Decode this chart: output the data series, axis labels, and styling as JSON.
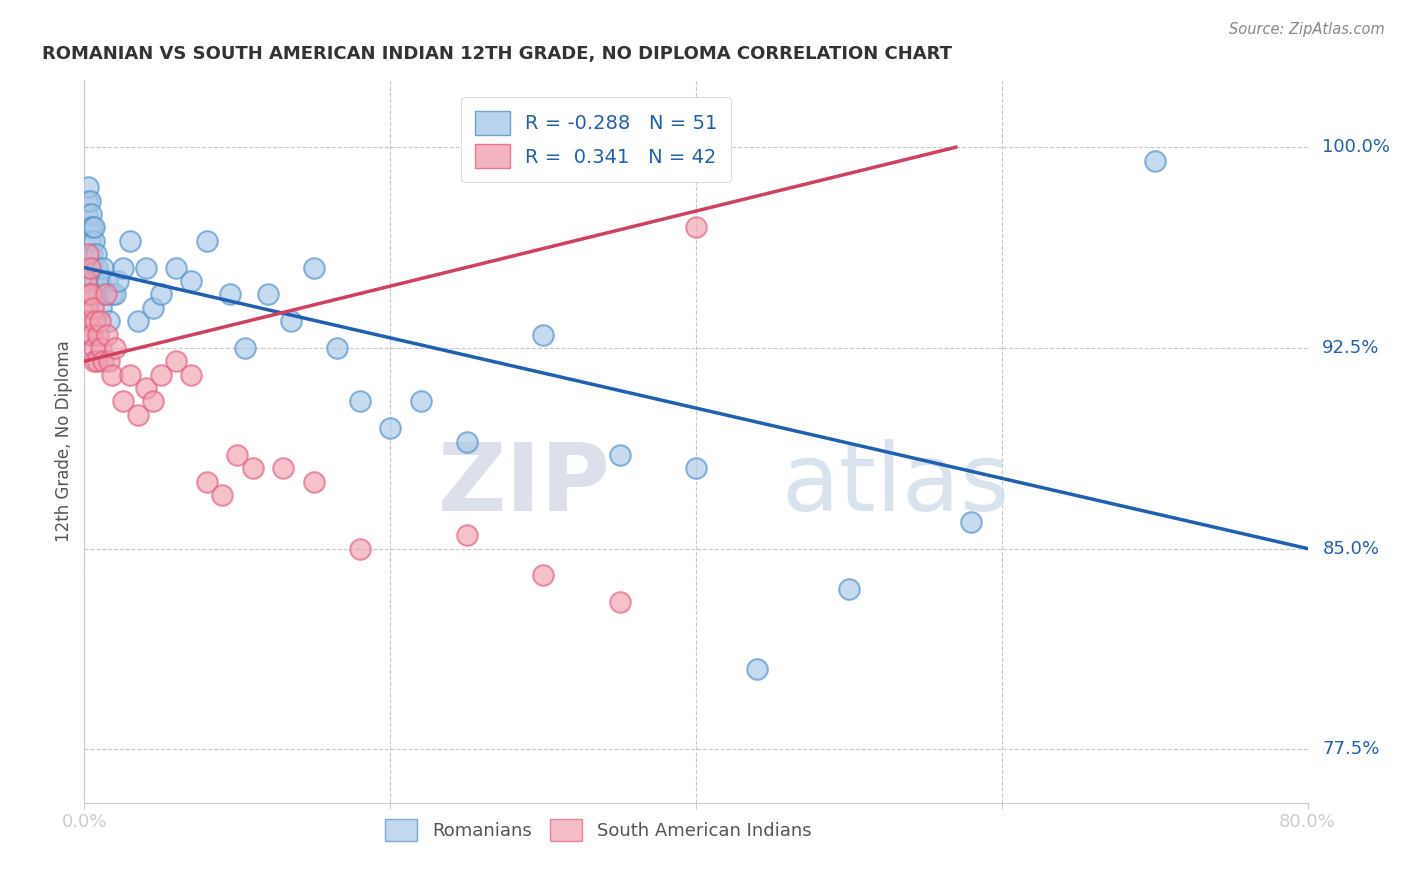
{
  "title": "ROMANIAN VS SOUTH AMERICAN INDIAN 12TH GRADE, NO DIPLOMA CORRELATION CHART",
  "source": "Source: ZipAtlas.com",
  "ylabel": "12th Grade, No Diploma",
  "xlim": [
    0.0,
    80.0
  ],
  "ylim": [
    75.5,
    102.5
  ],
  "xticks": [
    0.0,
    20.0,
    40.0,
    60.0,
    80.0
  ],
  "xticklabels": [
    "0.0%",
    "",
    "",
    "",
    "80.0%"
  ],
  "ytick_positions": [
    77.5,
    85.0,
    92.5,
    100.0
  ],
  "ytick_labels": [
    "77.5%",
    "85.0%",
    "92.5%",
    "100.0%"
  ],
  "watermark_zip": "ZIP",
  "watermark_atlas": "atlas",
  "r_blue": -0.288,
  "n_blue": 51,
  "r_pink": 0.341,
  "n_pink": 42,
  "blue_fill": "#a8c8e8",
  "pink_fill": "#f0a0b0",
  "blue_edge": "#5090c8",
  "pink_edge": "#e06080",
  "blue_line_color": "#2060b0",
  "pink_line_color": "#d04060",
  "blue_scatter_x": [
    0.15,
    0.2,
    0.25,
    0.3,
    0.35,
    0.4,
    0.45,
    0.5,
    0.5,
    0.55,
    0.6,
    0.65,
    0.7,
    0.75,
    0.8,
    0.9,
    1.0,
    1.1,
    1.2,
    1.3,
    1.5,
    1.6,
    1.8,
    2.0,
    2.2,
    2.5,
    3.0,
    3.5,
    4.0,
    4.5,
    5.0,
    6.0,
    7.0,
    8.0,
    9.5,
    10.5,
    12.0,
    13.5,
    15.0,
    16.5,
    18.0,
    20.0,
    22.0,
    25.0,
    30.0,
    35.0,
    40.0,
    44.0,
    50.0,
    58.0,
    70.0
  ],
  "blue_scatter_y": [
    97.5,
    98.0,
    98.5,
    97.0,
    98.0,
    96.5,
    97.5,
    97.0,
    96.0,
    95.5,
    96.5,
    97.0,
    95.0,
    96.0,
    95.5,
    94.5,
    95.0,
    94.0,
    95.5,
    94.5,
    95.0,
    93.5,
    94.5,
    94.5,
    95.0,
    95.5,
    96.5,
    93.5,
    95.5,
    94.0,
    94.5,
    95.5,
    95.0,
    96.5,
    94.5,
    92.5,
    94.5,
    93.5,
    95.5,
    92.5,
    90.5,
    89.5,
    90.5,
    89.0,
    93.0,
    88.5,
    88.0,
    80.5,
    83.5,
    86.0,
    99.5
  ],
  "pink_scatter_x": [
    0.1,
    0.15,
    0.2,
    0.25,
    0.3,
    0.35,
    0.4,
    0.45,
    0.5,
    0.55,
    0.6,
    0.65,
    0.7,
    0.8,
    0.9,
    1.0,
    1.1,
    1.2,
    1.4,
    1.5,
    1.6,
    1.8,
    2.0,
    2.5,
    3.0,
    3.5,
    4.0,
    4.5,
    5.0,
    6.0,
    7.0,
    8.0,
    9.0,
    10.0,
    11.0,
    13.0,
    15.0,
    18.0,
    25.0,
    30.0,
    35.0,
    40.0
  ],
  "pink_scatter_y": [
    95.0,
    94.0,
    93.5,
    96.0,
    94.5,
    93.0,
    95.5,
    94.5,
    93.0,
    94.0,
    92.5,
    92.0,
    93.5,
    92.0,
    93.0,
    93.5,
    92.5,
    92.0,
    94.5,
    93.0,
    92.0,
    91.5,
    92.5,
    90.5,
    91.5,
    90.0,
    91.0,
    90.5,
    91.5,
    92.0,
    91.5,
    87.5,
    87.0,
    88.5,
    88.0,
    88.0,
    87.5,
    85.0,
    85.5,
    84.0,
    83.0,
    97.0
  ],
  "blue_trend_x": [
    0.0,
    80.0
  ],
  "blue_trend_y": [
    95.5,
    85.0
  ],
  "pink_trend_x": [
    0.0,
    57.0
  ],
  "pink_trend_y": [
    92.0,
    100.0
  ],
  "bg_color": "#ffffff",
  "grid_color": "#c8c8c8"
}
